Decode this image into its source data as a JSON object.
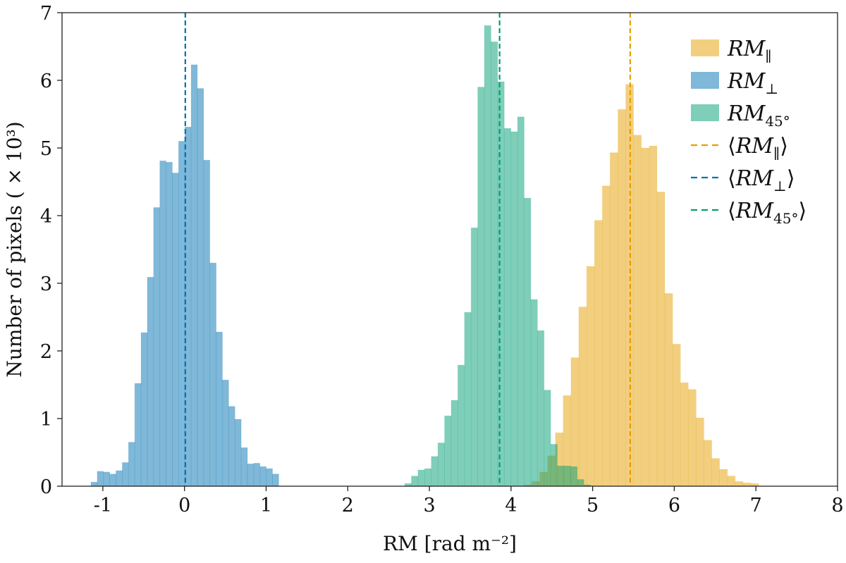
{
  "chart_data": {
    "type": "bar",
    "subtype": "histogram",
    "xlabel": "RM [rad m⁻²]",
    "ylabel": "Number of pixels ( × 10³)",
    "xlim": [
      -1.5,
      8
    ],
    "ylim": [
      0,
      7
    ],
    "xticks": [
      "-1",
      "0",
      "1",
      "2",
      "3",
      "4",
      "5",
      "6",
      "7",
      "8"
    ],
    "xtick_values": [
      -1,
      0,
      1,
      2,
      3,
      4,
      5,
      6,
      7,
      8
    ],
    "yticks": [
      "0",
      "1",
      "2",
      "3",
      "4",
      "5",
      "6",
      "7"
    ],
    "ytick_values": [
      0,
      1,
      2,
      3,
      4,
      5,
      6,
      7
    ],
    "grid": false,
    "legend_position": "top-right",
    "series": [
      {
        "name": "RM∥",
        "legend_main": "RM",
        "legend_sub": "∥",
        "color": "#E69F00",
        "bin_start": 4.16,
        "bin_width": 0.0958,
        "values": [
          0.02,
          0.07,
          0.21,
          0.45,
          0.79,
          1.34,
          1.9,
          2.65,
          3.25,
          3.93,
          4.44,
          4.93,
          5.57,
          5.94,
          5.19,
          5.0,
          5.03,
          4.35,
          2.85,
          2.1,
          1.53,
          1.43,
          1.01,
          0.68,
          0.41,
          0.25,
          0.15,
          0.07,
          0.05,
          0.04
        ]
      },
      {
        "name": "RM⊥",
        "legend_main": "RM",
        "legend_sub": "⊥",
        "color": "#0072B2",
        "bin_start": -1.146,
        "bin_width": 0.0767,
        "values": [
          0.06,
          0.22,
          0.21,
          0.18,
          0.23,
          0.35,
          0.65,
          1.52,
          2.27,
          3.09,
          4.12,
          4.81,
          4.79,
          4.63,
          5.1,
          5.31,
          6.23,
          5.88,
          4.82,
          3.3,
          2.28,
          1.57,
          1.18,
          0.99,
          0.57,
          0.33,
          0.34,
          0.29,
          0.26,
          0.18
        ]
      },
      {
        "name": "RM45°",
        "legend_main": "RM",
        "legend_sub": "45°",
        "color": "#009E73",
        "bin_start": 2.698,
        "bin_width": 0.0813,
        "values": [
          0.04,
          0.15,
          0.24,
          0.26,
          0.44,
          0.64,
          1.04,
          1.27,
          1.79,
          2.57,
          3.82,
          5.9,
          6.81,
          6.57,
          5.98,
          5.29,
          5.24,
          5.46,
          4.26,
          2.76,
          2.3,
          1.42,
          0.62,
          0.3,
          0.3,
          0.29,
          0.1,
          0.02
        ]
      }
    ],
    "mean_lines": [
      {
        "name": "⟨RM∥⟩",
        "legend_main": "RM",
        "legend_sub": "∥",
        "x": 5.46,
        "color": "#E69F00"
      },
      {
        "name": "⟨RM⊥⟩",
        "legend_main": "RM",
        "legend_sub": "⊥",
        "x": 0.01,
        "color": "#0072B2"
      },
      {
        "name": "⟨RM45°⟩",
        "legend_main": "RM",
        "legend_sub": "45°",
        "x": 3.86,
        "color": "#009E73"
      }
    ],
    "bracket_open": "⟨",
    "bracket_close": "⟩"
  }
}
